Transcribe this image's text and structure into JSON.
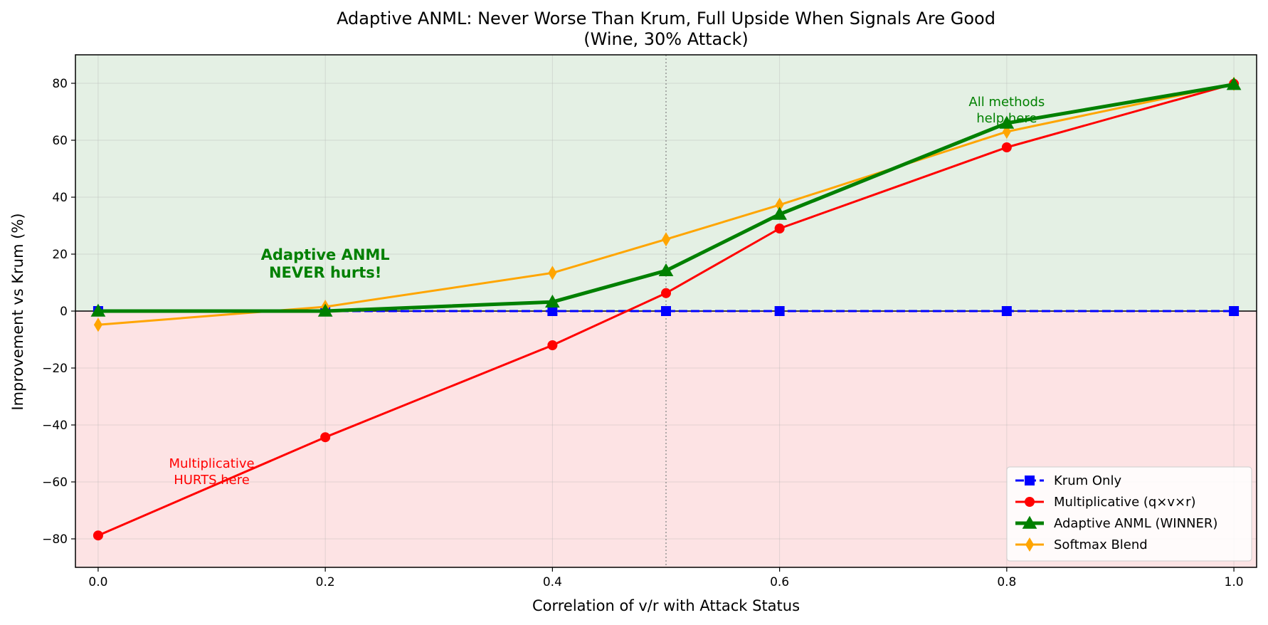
{
  "chart_data": {
    "type": "line",
    "title": "Adaptive ANML: Never Worse Than Krum, Full Upside When Signals Are Good",
    "subtitle": "(Wine, 30% Attack)",
    "xlabel": "Correlation of v/r with Attack Status",
    "ylabel": "Improvement vs Krum (%)",
    "xlim": [
      -0.02,
      1.02
    ],
    "ylim": [
      -90,
      90
    ],
    "xticks": [
      0.0,
      0.2,
      0.4,
      0.6,
      0.8,
      1.0
    ],
    "xtick_labels": [
      "0.0",
      "0.2",
      "0.4",
      "0.6",
      "0.8",
      "1.0"
    ],
    "yticks": [
      -80,
      -60,
      -40,
      -20,
      0,
      20,
      40,
      60,
      80
    ],
    "ytick_labels": [
      "−80",
      "−60",
      "−40",
      "−20",
      "0",
      "20",
      "40",
      "60",
      "80"
    ],
    "grid": true,
    "legend_position": "lower-right",
    "x": [
      0.0,
      0.2,
      0.4,
      0.5,
      0.6,
      0.8,
      1.0
    ],
    "series": [
      {
        "name": "Krum Only",
        "values": [
          0,
          0,
          0,
          0,
          0,
          0,
          0
        ],
        "color": "#0000ff",
        "marker": "square",
        "dashed": true
      },
      {
        "name": "Multiplicative (q×v×r)",
        "values": [
          -78.8,
          -44.3,
          -12.0,
          6.3,
          29.0,
          57.5,
          79.8
        ],
        "color": "#ff0000",
        "marker": "circle"
      },
      {
        "name": "Adaptive ANML (WINNER)",
        "values": [
          0,
          0,
          3.2,
          14.2,
          34.0,
          66.0,
          79.6
        ],
        "color": "#008000",
        "marker": "triangle",
        "thick": true
      },
      {
        "name": "Softmax Blend",
        "values": [
          -4.8,
          1.5,
          13.4,
          25.2,
          37.3,
          63.0,
          79.8
        ],
        "color": "#ffa500",
        "marker": "diamond"
      }
    ],
    "reference_line_x": 0.5,
    "shaded_regions": {
      "positive": "#e4f0e4",
      "negative": "#fde3e4"
    },
    "annotations": [
      {
        "text_lines": [
          "Adaptive ANML",
          "NEVER hurts!"
        ],
        "x": 0.2,
        "y": 18,
        "color": "#008000",
        "bold": true
      },
      {
        "text_lines": [
          "Multiplicative",
          "HURTS here"
        ],
        "x": 0.1,
        "y": -55,
        "color": "#ff0000",
        "bold": false
      },
      {
        "text_lines": [
          "All methods",
          "help here"
        ],
        "x": 0.8,
        "y": 72,
        "color": "#008000",
        "bold": false
      }
    ]
  }
}
